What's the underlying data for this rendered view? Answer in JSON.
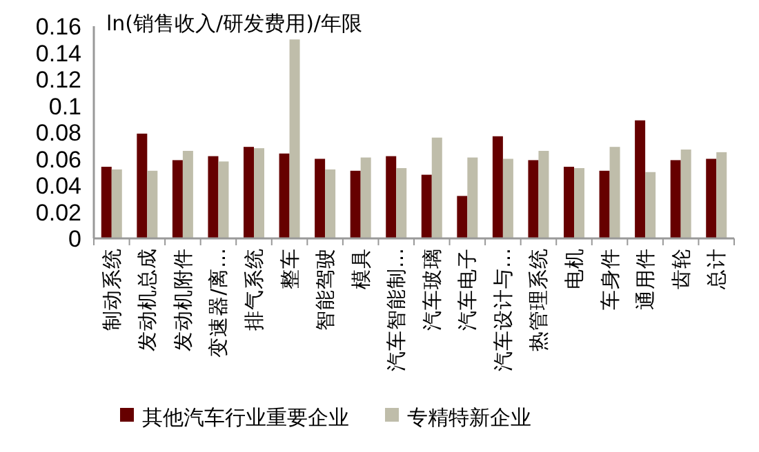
{
  "chart_data": {
    "type": "bar",
    "title": "ln(销售收入/研发费用)/年限",
    "categories": [
      "制动系统",
      "发动机总成",
      "发动机附件",
      "变速器/离…",
      "排气系统",
      "整车",
      "智能驾驶",
      "模具",
      "汽车智能制…",
      "汽车玻璃",
      "汽车电子",
      "汽车设计与…",
      "热管理系统",
      "电机",
      "车身件",
      "通用件",
      "齿轮",
      "总计"
    ],
    "series": [
      {
        "name": "其他汽车行业重要企业",
        "color": "#660000",
        "values": [
          0.054,
          0.079,
          0.059,
          0.062,
          0.069,
          0.064,
          0.06,
          0.051,
          0.062,
          0.048,
          0.032,
          0.077,
          0.059,
          0.054,
          0.051,
          0.089,
          0.059,
          0.06
        ]
      },
      {
        "name": "专精特新企业",
        "color": "#bfbdaa",
        "values": [
          0.052,
          0.051,
          0.066,
          0.058,
          0.068,
          0.15,
          0.052,
          0.061,
          0.053,
          0.076,
          0.061,
          0.06,
          0.066,
          0.053,
          0.069,
          0.05,
          0.067,
          0.065
        ]
      }
    ],
    "ylim": [
      0,
      0.16
    ],
    "yticks": [
      0,
      0.02,
      0.04,
      0.06,
      0.08,
      0.1,
      0.12,
      0.14,
      0.16
    ],
    "grid": false,
    "legend": "bottom"
  }
}
